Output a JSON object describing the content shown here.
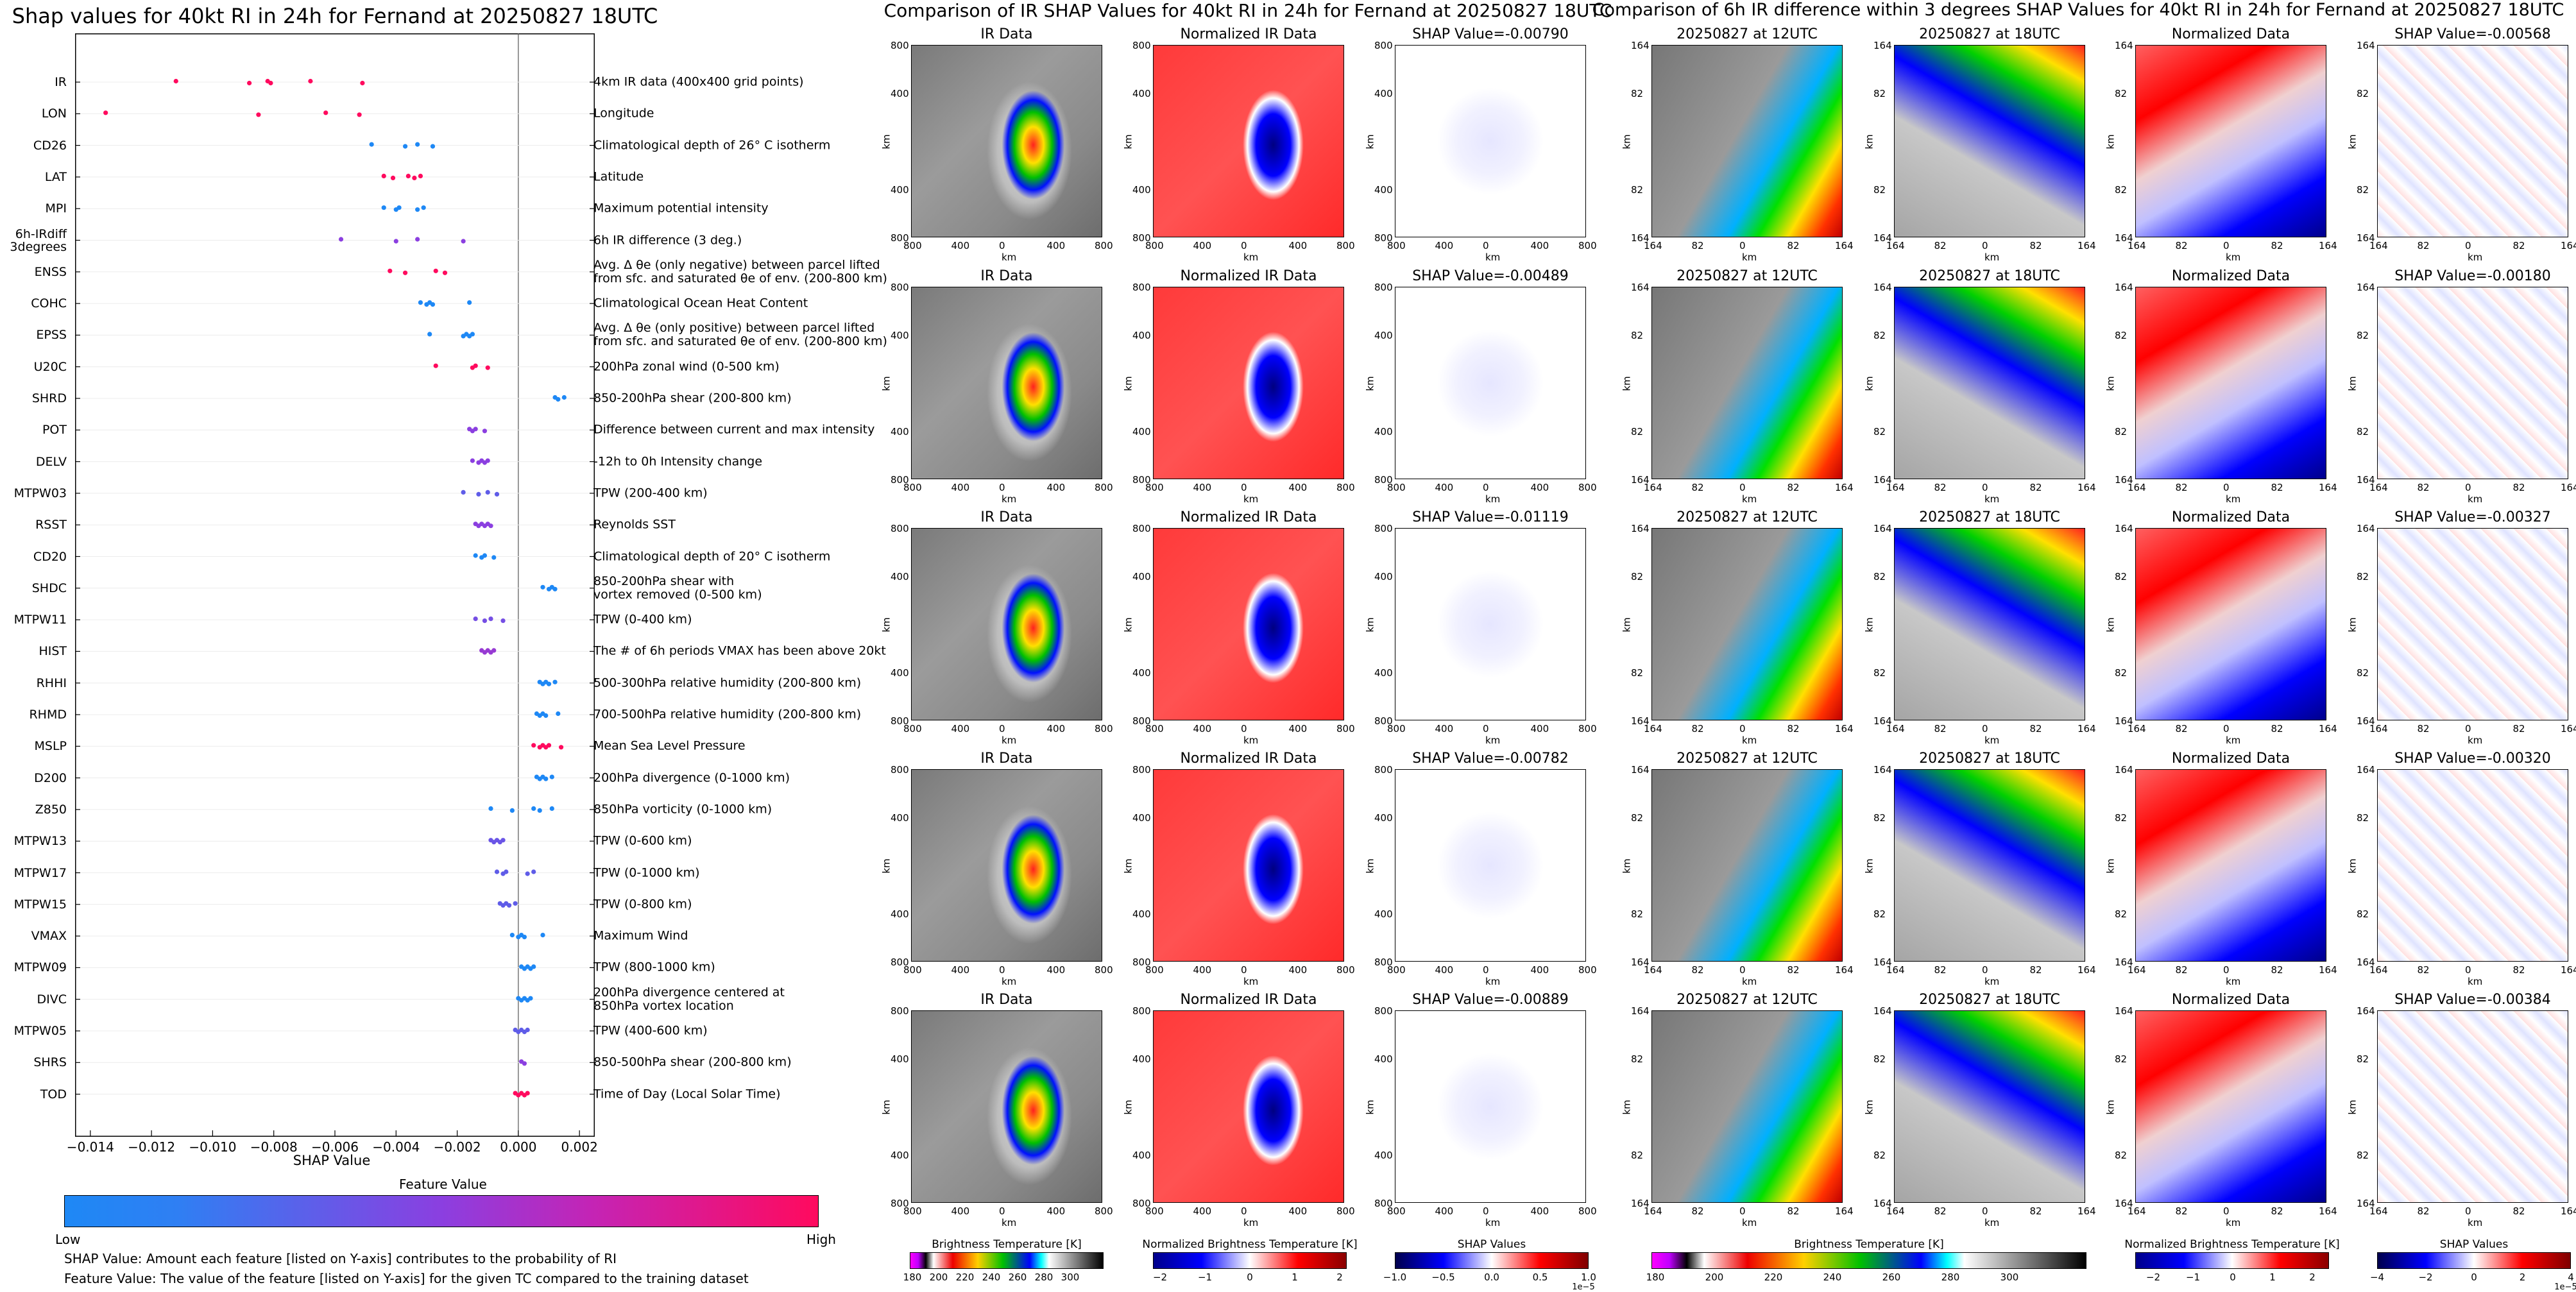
{
  "left_chart": {
    "title": "Shap values for 40kt RI in 24h for Fernand at 20250827 18UTC",
    "xlabel": "SHAP Value",
    "legend_title": "Feature Value",
    "legend_low": "Low",
    "legend_high": "High",
    "note1": "SHAP Value: Amount each feature [listed on Y-axis] contributes to the probability of RI",
    "note2": "Feature Value: The value of the feature [listed on Y-axis] for the given TC compared to the training dataset",
    "colors": {
      "low": "#1e88f5",
      "mid": "#8b3fe0",
      "high": "#ff0a5e"
    }
  },
  "chart_data": [
    {
      "type": "scatter",
      "title": "Shap values for 40kt RI in 24h for Fernand at 20250827 18UTC",
      "xlabel": "SHAP Value",
      "xlim": [
        -0.0145,
        0.0025
      ],
      "xticks": [
        "−0.014",
        "−0.012",
        "−0.010",
        "−0.008",
        "−0.006",
        "−0.004",
        "−0.002",
        "0.000",
        "0.002"
      ],
      "xtick_values": [
        -0.014,
        -0.012,
        -0.01,
        -0.008,
        -0.006,
        -0.004,
        -0.002,
        0.0,
        0.002
      ],
      "features": [
        {
          "name": "IR",
          "desc": "4km IR data (400x400 grid points)",
          "x": [
            -0.0112,
            -0.0088,
            -0.0082,
            -0.0081,
            -0.0068,
            -0.0051
          ],
          "c": [
            1,
            1,
            1,
            1,
            1,
            1
          ]
        },
        {
          "name": "LON",
          "desc": "Longitude",
          "x": [
            -0.0135,
            -0.0085,
            -0.0063,
            -0.0052
          ],
          "c": [
            1,
            1,
            1,
            1
          ]
        },
        {
          "name": "CD26",
          "desc": "Climatological depth of 26° C isotherm",
          "x": [
            -0.0048,
            -0.0037,
            -0.0033,
            -0.0028
          ],
          "c": [
            0,
            0,
            0,
            0
          ]
        },
        {
          "name": "LAT",
          "desc": "Latitude",
          "x": [
            -0.0044,
            -0.0041,
            -0.0036,
            -0.0034,
            -0.0032
          ],
          "c": [
            1,
            1,
            1,
            1,
            1
          ]
        },
        {
          "name": "MPI",
          "desc": "Maximum potential intensity",
          "x": [
            -0.0044,
            -0.004,
            -0.0039,
            -0.0033,
            -0.0031
          ],
          "c": [
            0,
            0,
            0,
            0,
            0
          ]
        },
        {
          "name": "6h-IRdiff\n3degrees",
          "desc": "6h IR difference (3 deg.)",
          "x": [
            -0.0058,
            -0.004,
            -0.0033,
            -0.0018
          ],
          "c": [
            0.5,
            0.5,
            0.5,
            0.5
          ]
        },
        {
          "name": "ENSS",
          "desc": "Avg. Δ θe (only negative) between parcel lifted\nfrom sfc. and saturated θe of env. (200-800 km)",
          "x": [
            -0.0042,
            -0.0037,
            -0.0027,
            -0.0024
          ],
          "c": [
            1,
            1,
            1,
            1
          ]
        },
        {
          "name": "COHC",
          "desc": "Climatological Ocean Heat Content",
          "x": [
            -0.0032,
            -0.003,
            -0.0029,
            -0.0028,
            -0.0016
          ],
          "c": [
            0,
            0,
            0,
            0,
            0
          ]
        },
        {
          "name": "EPSS",
          "desc": "Avg. Δ θe (only positive) between parcel lifted\nfrom sfc. and saturated θe of env. (200-800 km)",
          "x": [
            -0.0029,
            -0.0018,
            -0.0017,
            -0.0016,
            -0.0015
          ],
          "c": [
            0,
            0,
            0,
            0,
            0
          ]
        },
        {
          "name": "U20C",
          "desc": "200hPa zonal wind (0-500 km)",
          "x": [
            -0.0027,
            -0.0015,
            -0.0014,
            -0.001
          ],
          "c": [
            1,
            1,
            1,
            1
          ]
        },
        {
          "name": "SHRD",
          "desc": "850-200hPa shear (200-800 km)",
          "x": [
            0.0012,
            0.0013,
            0.0015
          ],
          "c": [
            0,
            0,
            0
          ]
        },
        {
          "name": "POT",
          "desc": "Difference between current and max intensity",
          "x": [
            -0.0016,
            -0.0015,
            -0.0014,
            -0.0011
          ],
          "c": [
            0.5,
            0.5,
            0.5,
            0.5
          ]
        },
        {
          "name": "DELV",
          "desc": "-12h to 0h Intensity change",
          "x": [
            -0.0015,
            -0.0013,
            -0.0012,
            -0.0011,
            -0.001
          ],
          "c": [
            0.5,
            0.5,
            0.5,
            0.5,
            0.5
          ]
        },
        {
          "name": "MTPW03",
          "desc": "TPW (200-400 km)",
          "x": [
            -0.0018,
            -0.0013,
            -0.001,
            -0.0007
          ],
          "c": [
            0.3,
            0.3,
            0.3,
            0.3
          ]
        },
        {
          "name": "RSST",
          "desc": "Reynolds SST",
          "x": [
            -0.0014,
            -0.0013,
            -0.0012,
            -0.0011,
            -0.001,
            -0.0009
          ],
          "c": [
            0.5,
            0.5,
            0.5,
            0.5,
            0.5,
            0.5
          ]
        },
        {
          "name": "CD20",
          "desc": "Climatological depth of 20° C isotherm",
          "x": [
            -0.0014,
            -0.0012,
            -0.0011,
            -0.0008
          ],
          "c": [
            0,
            0,
            0,
            0
          ]
        },
        {
          "name": "SHDC",
          "desc": "850-200hPa shear with\nvortex removed (0-500 km)",
          "x": [
            0.0008,
            0.001,
            0.0011,
            0.0012
          ],
          "c": [
            0,
            0,
            0,
            0
          ]
        },
        {
          "name": "MTPW11",
          "desc": "TPW (0-400 km)",
          "x": [
            -0.0014,
            -0.0011,
            -0.0009,
            -0.0005
          ],
          "c": [
            0.4,
            0.4,
            0.4,
            0.4
          ]
        },
        {
          "name": "HIST",
          "desc": "The # of 6h periods VMAX has been above 20kt",
          "x": [
            -0.0012,
            -0.0011,
            -0.001,
            -0.0009,
            -0.0008
          ],
          "c": [
            0.55,
            0.55,
            0.55,
            0.55,
            0.55
          ]
        },
        {
          "name": "RHHI",
          "desc": "500-300hPa relative humidity (200-800 km)",
          "x": [
            0.0007,
            0.0008,
            0.0009,
            0.001,
            0.0012
          ],
          "c": [
            0,
            0,
            0,
            0,
            0
          ]
        },
        {
          "name": "RHMD",
          "desc": "700-500hPa relative humidity (200-800 km)",
          "x": [
            0.0006,
            0.0007,
            0.0008,
            0.0009,
            0.0013
          ],
          "c": [
            0,
            0,
            0,
            0,
            0
          ]
        },
        {
          "name": "MSLP",
          "desc": "Mean Sea Level Pressure",
          "x": [
            0.0005,
            0.0007,
            0.0008,
            0.0009,
            0.001,
            0.0014
          ],
          "c": [
            1,
            1,
            1,
            1,
            1,
            1
          ]
        },
        {
          "name": "D200",
          "desc": "200hPa divergence (0-1000 km)",
          "x": [
            0.0006,
            0.0007,
            0.0008,
            0.0009,
            0.0011
          ],
          "c": [
            0,
            0,
            0,
            0,
            0
          ]
        },
        {
          "name": "Z850",
          "desc": "850hPa vorticity (0-1000 km)",
          "x": [
            -0.0009,
            -0.0002,
            0.0005,
            0.0007,
            0.0011
          ],
          "c": [
            0,
            0,
            0,
            0,
            0
          ]
        },
        {
          "name": "MTPW13",
          "desc": "TPW (0-600 km)",
          "x": [
            -0.0009,
            -0.0008,
            -0.0007,
            -0.0006,
            -0.0005
          ],
          "c": [
            0.35,
            0.35,
            0.35,
            0.35,
            0.35
          ]
        },
        {
          "name": "MTPW17",
          "desc": "TPW (0-1000 km)",
          "x": [
            -0.0007,
            -0.0005,
            -0.0004,
            0.0003,
            0.0005
          ],
          "c": [
            0.3,
            0.3,
            0.3,
            0.3,
            0.3
          ]
        },
        {
          "name": "MTPW15",
          "desc": "TPW (0-800 km)",
          "x": [
            -0.0006,
            -0.0005,
            -0.0004,
            -0.0003,
            -0.0001
          ],
          "c": [
            0.3,
            0.3,
            0.3,
            0.3,
            0.3
          ]
        },
        {
          "name": "VMAX",
          "desc": "Maximum Wind",
          "x": [
            -0.0002,
            0.0,
            0.0001,
            0.0002,
            0.0008
          ],
          "c": [
            0,
            0,
            0,
            0,
            0
          ]
        },
        {
          "name": "MTPW09",
          "desc": "TPW (800-1000 km)",
          "x": [
            0.0001,
            0.0002,
            0.0003,
            0.0004,
            0.0005
          ],
          "c": [
            0,
            0,
            0,
            0,
            0
          ]
        },
        {
          "name": "DIVC",
          "desc": "200hPa divergence centered at\n850hPa vortex location",
          "x": [
            0.0,
            0.0001,
            0.0002,
            0.0003,
            0.0004
          ],
          "c": [
            0,
            0,
            0,
            0,
            0
          ]
        },
        {
          "name": "MTPW05",
          "desc": "TPW (400-600 km)",
          "x": [
            -0.0001,
            0.0,
            0.0001,
            0.0002,
            0.0003
          ],
          "c": [
            0.3,
            0.3,
            0.3,
            0.3,
            0.3
          ]
        },
        {
          "name": "SHRS",
          "desc": "850-500hPa shear (200-800 km)",
          "x": [
            0.0001,
            0.0002
          ],
          "c": [
            0.5,
            0.5
          ]
        },
        {
          "name": "TOD",
          "desc": "Time of Day (Local Solar Time)",
          "x": [
            -0.0001,
            0.0,
            0.0001,
            0.0002,
            0.0003
          ],
          "c": [
            1,
            1,
            1,
            1,
            1
          ]
        }
      ]
    }
  ],
  "middle_section": {
    "title": "Comparison of IR SHAP Values for 40kt RI in 24h for Fernand at 20250827 18UTC",
    "col_titles": [
      "IR Data",
      "Normalized IR Data"
    ],
    "shap_titles": [
      "SHAP Value=-0.00790",
      "SHAP Value=-0.00489",
      "SHAP Value=-0.01119",
      "SHAP Value=-0.00782",
      "SHAP Value=-0.00889"
    ],
    "ticks": [
      "800",
      "400",
      "0",
      "400",
      "800"
    ],
    "axis_label": "km",
    "cbars": [
      {
        "label": "Brightness Temperature [K]",
        "ticks": [
          "180",
          "200",
          "220",
          "240",
          "260",
          "280",
          "300"
        ]
      },
      {
        "label": "Normalized Brightness Temperature [K]",
        "ticks": [
          "−2",
          "−1",
          "0",
          "1",
          "2"
        ]
      },
      {
        "label": "SHAP Values",
        "ticks": [
          "−1.0",
          "−0.5",
          "0.0",
          "0.5",
          "1.0"
        ],
        "offset": "1e−5"
      }
    ]
  },
  "right_section": {
    "title": "Comparison of 6h IR difference within 3 degrees SHAP Values for 40kt RI in 24h for Fernand at 20250827 18UTC",
    "col_titles": [
      "20250827 at 12UTC",
      "20250827 at 18UTC",
      "Normalized Data"
    ],
    "shap_titles": [
      "SHAP Value=-0.00568",
      "SHAP Value=-0.00180",
      "SHAP Value=-0.00327",
      "SHAP Value=-0.00320",
      "SHAP Value=-0.00384"
    ],
    "ticks": [
      "164",
      "82",
      "0",
      "82",
      "164"
    ],
    "axis_label": "km",
    "cbars": [
      {
        "label": "Brightness Temperature [K]",
        "ticks": [
          "180",
          "200",
          "220",
          "240",
          "260",
          "280",
          "300"
        ]
      },
      {
        "label": "Normalized Brightness Temperature [K]",
        "ticks": [
          "−2",
          "−1",
          "0",
          "1",
          "2"
        ]
      },
      {
        "label": "SHAP Values",
        "ticks": [
          "−4",
          "−2",
          "0",
          "2",
          "4"
        ],
        "offset": "1e−5"
      }
    ]
  }
}
